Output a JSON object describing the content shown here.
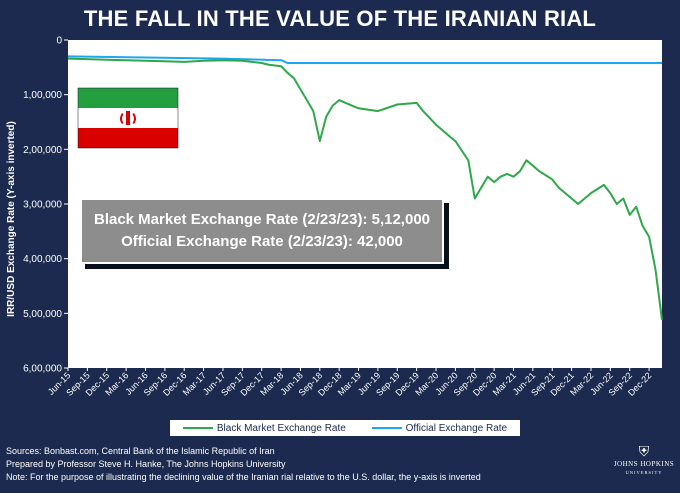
{
  "title": "THE FALL IN THE VALUE OF THE IRANIAN RIAL",
  "callout": {
    "line1": "Black Market Exchange Rate (2/23/23): 5,12,000",
    "line2": "Official Exchange Rate (2/23/23): 42,000"
  },
  "legend": {
    "black_market": "Black Market Exchange Rate",
    "official": "Official Exchange Rate"
  },
  "footer": {
    "sources": "Sources: Bonbast.com, Central Bank of the Islamic Republic of Iran",
    "prepared": "Prepared by Professor Steve H. Hanke, The Johns Hopkins University",
    "note": "Note: For the purpose of illustrating the declining value of the Iranian rial relative to the U.S. dollar, the y-axis is inverted"
  },
  "logo": {
    "name": "JOHNS HOPKINS",
    "subtitle": "UNIVERSITY"
  },
  "colors": {
    "background": "#1b2a4e",
    "plot_background": "#ffffff",
    "black_market": "#2ea84a",
    "official": "#1ea6f0"
  },
  "chart_data": {
    "type": "line",
    "title": "THE FALL IN THE VALUE OF THE IRANIAN RIAL",
    "xlabel": "",
    "ylabel": "IRR/USD Exchange Rate (Y-axis inverted)",
    "y_inverted": true,
    "ylim": [
      0,
      600000
    ],
    "yticks": [
      0,
      100000,
      200000,
      300000,
      400000,
      500000,
      600000
    ],
    "ytick_labels": [
      "0",
      "1,00,000",
      "2,00,000",
      "3,00,000",
      "4,00,000",
      "5,00,000",
      "6,00,000"
    ],
    "xlim": [
      "2015-06",
      "2023-02"
    ],
    "xtick_labels": [
      "Jun-15",
      "Sep-15",
      "Dec-15",
      "Mar-16",
      "Jun-16",
      "Sep-16",
      "Dec-16",
      "Mar-17",
      "Jun-17",
      "Sep-17",
      "Dec-17",
      "Mar-18",
      "Jun-18",
      "Sep-18",
      "Dec-18",
      "Mar-19",
      "Jun-19",
      "Sep-19",
      "Dec-19",
      "Mar-20",
      "Jun-20",
      "Sep-20",
      "Dec-20",
      "Mar-21",
      "Jun-21",
      "Sep-21",
      "Dec-21",
      "Mar-22",
      "Jun-22",
      "Sep-22",
      "Dec-22"
    ],
    "legend_position": "bottom",
    "grid": false,
    "series": [
      {
        "name": "Black Market Exchange Rate",
        "x": [
          "2015-06",
          "2015-09",
          "2015-12",
          "2016-03",
          "2016-06",
          "2016-09",
          "2016-12",
          "2017-03",
          "2017-06",
          "2017-09",
          "2017-12",
          "2018-01",
          "2018-03",
          "2018-04",
          "2018-05",
          "2018-06",
          "2018-07",
          "2018-08",
          "2018-09",
          "2018-10",
          "2018-11",
          "2018-12",
          "2019-01",
          "2019-03",
          "2019-06",
          "2019-09",
          "2019-12",
          "2020-01",
          "2020-03",
          "2020-05",
          "2020-06",
          "2020-08",
          "2020-09",
          "2020-10",
          "2020-11",
          "2020-12",
          "2021-01",
          "2021-02",
          "2021-03",
          "2021-04",
          "2021-05",
          "2021-06",
          "2021-07",
          "2021-09",
          "2021-10",
          "2021-12",
          "2022-01",
          "2022-03",
          "2022-05",
          "2022-06",
          "2022-07",
          "2022-08",
          "2022-09",
          "2022-10",
          "2022-11",
          "2022-12",
          "2023-01",
          "2023-02"
        ],
        "values": [
          34000,
          35000,
          36000,
          37000,
          38000,
          39000,
          40000,
          38000,
          37000,
          38000,
          42000,
          45000,
          48000,
          60000,
          70000,
          90000,
          110000,
          130000,
          185000,
          140000,
          120000,
          110000,
          115000,
          125000,
          130000,
          118000,
          115000,
          130000,
          155000,
          175000,
          185000,
          220000,
          290000,
          270000,
          250000,
          260000,
          250000,
          245000,
          250000,
          240000,
          220000,
          230000,
          240000,
          255000,
          270000,
          290000,
          300000,
          280000,
          265000,
          280000,
          300000,
          290000,
          320000,
          305000,
          340000,
          360000,
          420000,
          512000
        ]
      },
      {
        "name": "Official Exchange Rate",
        "x": [
          "2015-06",
          "2016-06",
          "2017-06",
          "2018-03",
          "2018-04",
          "2019-06",
          "2020-06",
          "2021-06",
          "2022-06",
          "2023-02"
        ],
        "values": [
          30000,
          32000,
          34000,
          37000,
          42000,
          42000,
          42000,
          42000,
          42000,
          42000
        ]
      }
    ]
  }
}
